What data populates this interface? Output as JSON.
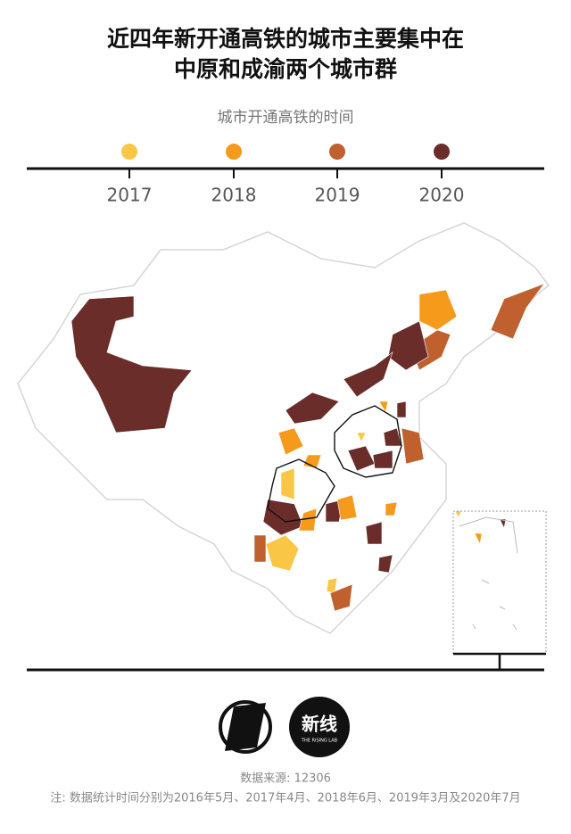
{
  "header": {
    "title_lines": [
      "近四年新开通高铁的城市主要集中在",
      "中原和成渝两个城市群"
    ]
  },
  "legend": {
    "title": "城市开通高铁的时间",
    "items": [
      {
        "label": "2017",
        "color": "#f9c646"
      },
      {
        "label": "2018",
        "color": "#f59a1b"
      },
      {
        "label": "2019",
        "color": "#c0602f"
      },
      {
        "label": "2020",
        "color": "#6b2d2a"
      }
    ]
  },
  "logo": {
    "text": "新线",
    "subtitle": "THE RISING LAB"
  },
  "footer": {
    "source": "数据来源: 12306",
    "note": "注: 数据统计时间分别为2016年5月、2017年4月、2018年6月、2019年3月及2020年7月"
  }
}
